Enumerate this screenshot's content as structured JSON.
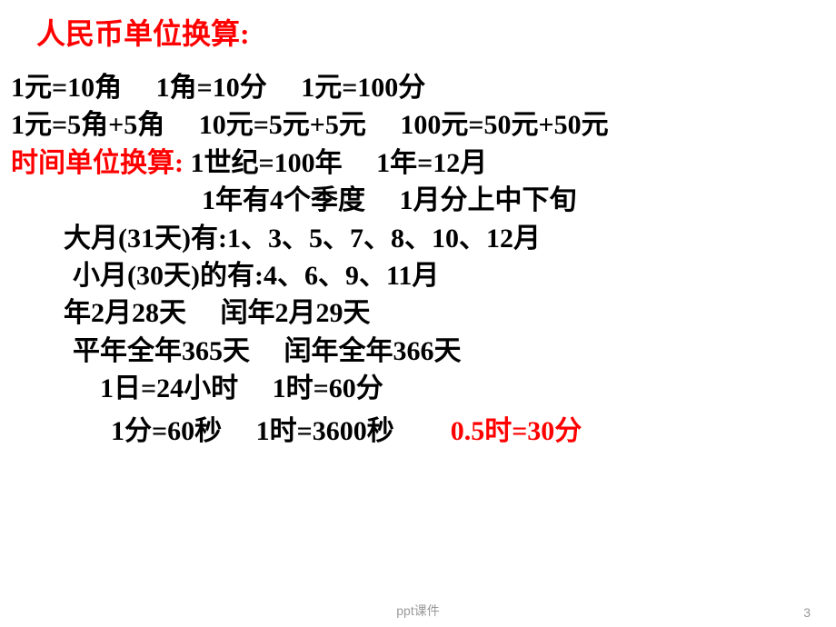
{
  "title_rmb": "人民币单位换算:",
  "rmb_line1": "1元=10角　 1角=10分　  1元=100分",
  "rmb_line2": "1元=5角+5角　  10元=5元+5元　  100元=50元+50元",
  "title_time": "时间单位换算:",
  "time_part1": "  1世纪=100年　  1年=12月",
  "time_line2": "1年有4个季度　  1月分上中下旬",
  "big_month": "大月(31天)有:1、3、5、7、8、10、12月",
  "small_month": "小月(30天)的有:4、6、9、11月",
  "feb_line": "年2月28天　 闰年2月29天",
  "year_days": "平年全年365天　 闰年全年366天",
  "day_line1": "1日=24小时　  1时=60分",
  "day_line2": "1分=60秒　  1时=3600秒",
  "highlight": "0.5时=30分",
  "footer": "ppt课件",
  "page_num": "3",
  "colors": {
    "red": "#ff0000",
    "black": "#000000",
    "bg": "#ffffff",
    "footer": "#999999"
  },
  "font": {
    "title_size": 32,
    "body_size": 30,
    "footer_size": 14,
    "weight": "bold"
  }
}
